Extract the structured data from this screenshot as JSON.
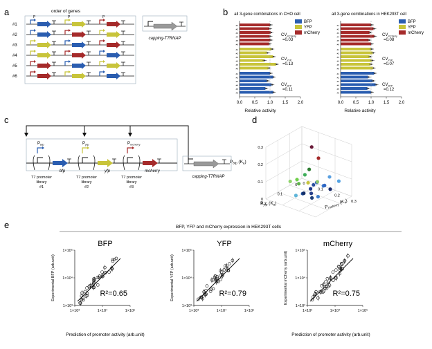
{
  "panels": {
    "a": "a",
    "b": "b",
    "c": "c",
    "d": "d",
    "e": "e"
  },
  "panel_a": {
    "title": "order of genes",
    "rows": [
      "#1",
      "#2",
      "#3",
      "#4",
      "#5",
      "#6"
    ],
    "promoters": {
      "bfp": "P",
      "yfp": "P",
      "mcherry": "P"
    },
    "capping_label": "capping-T7RNAP"
  },
  "panel_b": {
    "cho": {
      "title": "all 3-gene combinations in CHO cell",
      "cv_mcherry": "CV",
      "cv_mcherry_sub": "mCherry",
      "cv_mcherry_val": "=0.03",
      "cv_yfp": "CV",
      "cv_yfp_sub": "YFP",
      "cv_yfp_val": "=0.13",
      "cv_bfp": "CV",
      "cv_bfp_sub": "BFP",
      "cv_bfp_val": "=0.11",
      "xlabel": "Relative activity",
      "ticks": [
        "0.0",
        "0.5",
        "1.0",
        "1.5",
        "2.0"
      ]
    },
    "hek": {
      "title": "all 3-gene combinations in HEK293T cell",
      "cv_mcherry": "CV",
      "cv_mcherry_sub": "mCherry",
      "cv_mcherry_val": "=0.08",
      "cv_yfp": "CV",
      "cv_yfp_sub": "YFP",
      "cv_yfp_val": "=0.07",
      "cv_bfp": "CV",
      "cv_bfp_sub": "BFP",
      "cv_bfp_val": "=0.12",
      "xlabel": "Relative activity",
      "ticks": [
        "0.0",
        "0.5",
        "1.0",
        "1.5",
        "2.0"
      ]
    },
    "legend": [
      "BFP",
      "YFP",
      "mCherry"
    ],
    "colors": {
      "bfp": "#2a5db0",
      "yfp": "#c8c43a",
      "mcherry": "#a52a2a"
    }
  },
  "panel_c": {
    "promoters": [
      "P",
      "P",
      "P"
    ],
    "promoter_subs": [
      "bfp",
      "yfp",
      "mcherry"
    ],
    "genes": [
      "bfp",
      "yfp",
      "mcherry"
    ],
    "libraries": [
      "T7 promoter\nlibrary\n#1",
      "T7 promoter\nlibrary\n#2",
      "T7 promoter\nlibrary\n#3"
    ],
    "lib_l1": [
      "T7 promoter",
      "T7 promoter",
      "T7 promoter"
    ],
    "lib_l2": [
      "library",
      "library",
      "library"
    ],
    "lib_l3": [
      "#1",
      "#2",
      "#3"
    ],
    "capping_label": "capping-T7RNAP"
  },
  "panel_d": {
    "axis_z": "P",
    "axis_z_sub": "bfp",
    "axis_z_unit": "(K",
    "axis_x": "P",
    "axis_x_sub": "yfp",
    "axis_x_unit": "(K",
    "axis_y": "P",
    "axis_y_sub": "mcherry",
    "axis_y_unit": "(K",
    "k_sub": "a",
    "close": ")",
    "z_ticks": [
      "0.3",
      "0.2",
      "0.1",
      "0"
    ],
    "x_ticks": [
      "0.2",
      "0.1",
      "0"
    ],
    "y_ticks": [
      "0",
      "0.1",
      "0.2",
      "0.3"
    ]
  },
  "panel_e": {
    "header": "BFP, YFP and mCherry expression in HEK293T cells",
    "xlabel": "Prediction of promoter activity (arb.unit)",
    "plots": [
      {
        "title": "BFP",
        "ylabel": "Experimental BFP (arb.unit)",
        "r2": "R²=0.65",
        "yticks": [
          "1×10⁵",
          "1×10⁴",
          "1×10³"
        ],
        "xticks": [
          "1×10³",
          "1×10⁴",
          "1×10⁵"
        ]
      },
      {
        "title": "YFP",
        "ylabel": "Experimental YFP (arb.unit)",
        "r2": "R²=0.79",
        "yticks": [
          "1×10⁵",
          "1×10⁴",
          "1×10³"
        ],
        "xticks": [
          "1×10³",
          "1×10⁴",
          "1×10⁵"
        ]
      },
      {
        "title": "mCherry",
        "ylabel": "Experimental mCherry (arb.unit)",
        "r2": "R²=0.75",
        "yticks": [
          "1×10⁵",
          "1×10⁴",
          "1×10³"
        ],
        "xticks": [
          "1×10³",
          "1×10⁴",
          "1×10⁵"
        ]
      }
    ]
  }
}
